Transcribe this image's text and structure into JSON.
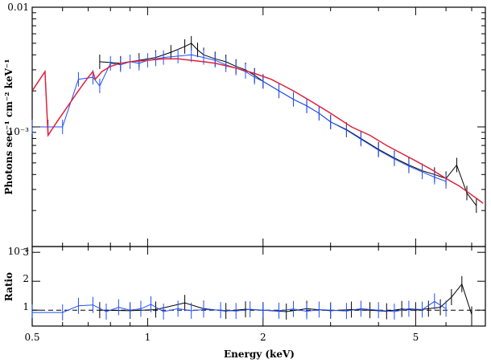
{
  "chart_data": [
    {
      "type": "line",
      "panel": "spectrum",
      "ylabel": "Photons sec⁻¹ cm⁻² keV⁻¹",
      "xscale": "log",
      "yscale": "log",
      "xlim": [
        0.5,
        7.6
      ],
      "ylim": [
        0.0001,
        0.01
      ],
      "y_tick_labels": [
        "0.01",
        "10⁻³",
        "10⁻⁴"
      ],
      "series": [
        {
          "color": "#000000",
          "kind": "data",
          "x": [
            0.75,
            0.85,
            0.95,
            1.05,
            1.15,
            1.25,
            1.3,
            1.35,
            1.4,
            1.5,
            1.6,
            1.7,
            1.8,
            1.9,
            2.0,
            2.2,
            2.4,
            2.6,
            2.8,
            3.0,
            3.3,
            3.6,
            4.0,
            4.4,
            4.8,
            5.2,
            5.6,
            6.0,
            6.4,
            6.8,
            7.2
          ],
          "y": [
            0.0035,
            0.0034,
            0.0036,
            0.0038,
            0.0042,
            0.0047,
            0.005,
            0.0044,
            0.004,
            0.0037,
            0.0035,
            0.0032,
            0.003,
            0.0027,
            0.0024,
            0.002,
            0.0017,
            0.0015,
            0.0013,
            0.0011,
            0.00095,
            0.0008,
            0.00065,
            0.00055,
            0.00048,
            0.00043,
            0.0004,
            0.00037,
            0.00048,
            0.00028,
            0.00022
          ]
        },
        {
          "color": "#1f4fff",
          "kind": "data",
          "x": [
            0.5,
            0.55,
            0.6,
            0.66,
            0.72,
            0.75,
            0.8,
            0.85,
            0.9,
            0.95,
            1.0,
            1.05,
            1.1,
            1.2,
            1.3,
            1.4,
            1.5,
            1.6,
            1.7,
            1.8,
            1.9,
            2.0,
            2.2,
            2.4,
            2.6,
            2.8,
            3.0,
            3.3,
            3.6,
            4.0,
            4.4,
            4.8,
            5.2,
            5.6,
            6.0
          ],
          "y": [
            0.001,
            0.001,
            0.001,
            0.0025,
            0.0026,
            0.0022,
            0.0034,
            0.0033,
            0.0035,
            0.0034,
            0.0036,
            0.0037,
            0.0038,
            0.0039,
            0.004,
            0.0038,
            0.0036,
            0.0033,
            0.0031,
            0.0029,
            0.0026,
            0.0024,
            0.002,
            0.0017,
            0.0015,
            0.0013,
            0.0011,
            0.00094,
            0.00079,
            0.00064,
            0.00054,
            0.00047,
            0.00042,
            0.00038,
            0.00035
          ]
        },
        {
          "color": "#e0203a",
          "kind": "model",
          "x": [
            0.5,
            0.54,
            0.55,
            0.58,
            0.62,
            0.66,
            0.7,
            0.72,
            0.73,
            0.76,
            0.8,
            0.85,
            0.9,
            1.0,
            1.1,
            1.2,
            1.3,
            1.4,
            1.5,
            1.7,
            1.9,
            2.1,
            2.4,
            2.7,
            3.0,
            3.4,
            3.8,
            4.2,
            4.6,
            5.0,
            5.5,
            6.0,
            6.5,
            7.0,
            7.5
          ],
          "y": [
            0.002,
            0.0029,
            0.00085,
            0.0011,
            0.0015,
            0.002,
            0.0026,
            0.0029,
            0.0025,
            0.0029,
            0.0032,
            0.0034,
            0.0035,
            0.0036,
            0.0037,
            0.0037,
            0.0036,
            0.0035,
            0.0034,
            0.0031,
            0.0028,
            0.0025,
            0.002,
            0.0016,
            0.0013,
            0.001,
            0.00085,
            0.0007,
            0.0006,
            0.00052,
            0.00044,
            0.00037,
            0.00032,
            0.00027,
            0.00023
          ]
        }
      ]
    },
    {
      "type": "line",
      "panel": "ratio",
      "xlabel": "Energy (keV)",
      "ylabel": "Ratio",
      "xscale": "log",
      "xlim": [
        0.5,
        7.6
      ],
      "ylim": [
        0.45,
        3.2
      ],
      "x_tick_labels": [
        "0.5",
        "1",
        "2",
        "5"
      ],
      "x_tick_values": [
        0.5,
        1,
        2,
        5
      ],
      "y_tick_labels": [
        "1",
        "2",
        "3"
      ],
      "y_tick_values": [
        1,
        2,
        3
      ],
      "reference_line": 1,
      "series": [
        {
          "color": "#000000",
          "kind": "data",
          "x": [
            0.75,
            0.9,
            1.05,
            1.25,
            1.4,
            1.6,
            1.8,
            2.0,
            2.3,
            2.6,
            3.0,
            3.4,
            3.8,
            4.2,
            4.6,
            5.0,
            5.4,
            5.8,
            6.2,
            6.6,
            7.0
          ],
          "y": [
            1.0,
            0.98,
            1.02,
            1.25,
            1.05,
            0.97,
            1.03,
            1.0,
            0.95,
            1.05,
            0.98,
            1.02,
            1.0,
            0.96,
            1.04,
            1.0,
            1.05,
            1.1,
            1.45,
            1.9,
            0.85
          ]
        },
        {
          "color": "#1f4fff",
          "kind": "data",
          "x": [
            0.5,
            0.6,
            0.66,
            0.72,
            0.78,
            0.84,
            0.9,
            0.96,
            1.02,
            1.1,
            1.2,
            1.3,
            1.4,
            1.55,
            1.7,
            1.85,
            2.0,
            2.2,
            2.4,
            2.6,
            2.8,
            3.0,
            3.3,
            3.6,
            4.0,
            4.4,
            4.8,
            5.2,
            5.6,
            6.0
          ],
          "y": [
            0.92,
            0.92,
            1.15,
            1.18,
            0.95,
            1.1,
            1.0,
            1.05,
            1.2,
            0.95,
            1.05,
            0.98,
            1.02,
            1.0,
            0.97,
            1.03,
            1.0,
            0.98,
            1.04,
            0.96,
            1.02,
            1.0,
            0.97,
            1.05,
            1.0,
            0.95,
            1.05,
            1.02,
            1.3,
            1.05
          ]
        }
      ]
    }
  ]
}
